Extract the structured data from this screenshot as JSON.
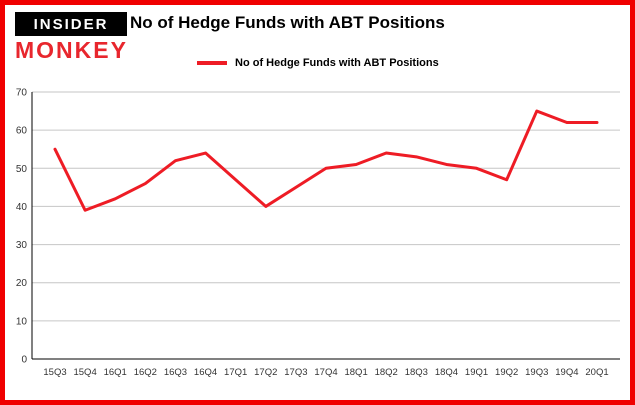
{
  "brand": {
    "line1": "INSIDER",
    "line2": "MONKEY"
  },
  "header": {
    "title": "No of Hedge Funds with ABT Positions"
  },
  "legend": {
    "label": "No of Hedge Funds with ABT Positions"
  },
  "colors": {
    "frame": "#f00000",
    "line": "#ee1c25",
    "grid": "#c6c6c6",
    "axis": "#000000",
    "tick_text": "#333333"
  },
  "chart_data": {
    "type": "line",
    "title": "No of Hedge Funds with ABT Positions",
    "categories": [
      "15Q3",
      "15Q4",
      "16Q1",
      "16Q2",
      "16Q3",
      "16Q4",
      "17Q1",
      "17Q2",
      "17Q3",
      "17Q4",
      "18Q1",
      "18Q2",
      "18Q3",
      "18Q4",
      "19Q1",
      "19Q2",
      "19Q3",
      "19Q4",
      "20Q1"
    ],
    "values": [
      55,
      39,
      42,
      46,
      52,
      54,
      47,
      40,
      45,
      50,
      51,
      54,
      53,
      51,
      50,
      47,
      65,
      62,
      62
    ],
    "xlabel": "",
    "ylabel": "",
    "ylim": [
      0,
      70
    ],
    "yticks": [
      0,
      10,
      20,
      30,
      40,
      50,
      60,
      70
    ],
    "line_color": "#ee1c25",
    "grid": true,
    "legend_position": "top-left"
  }
}
